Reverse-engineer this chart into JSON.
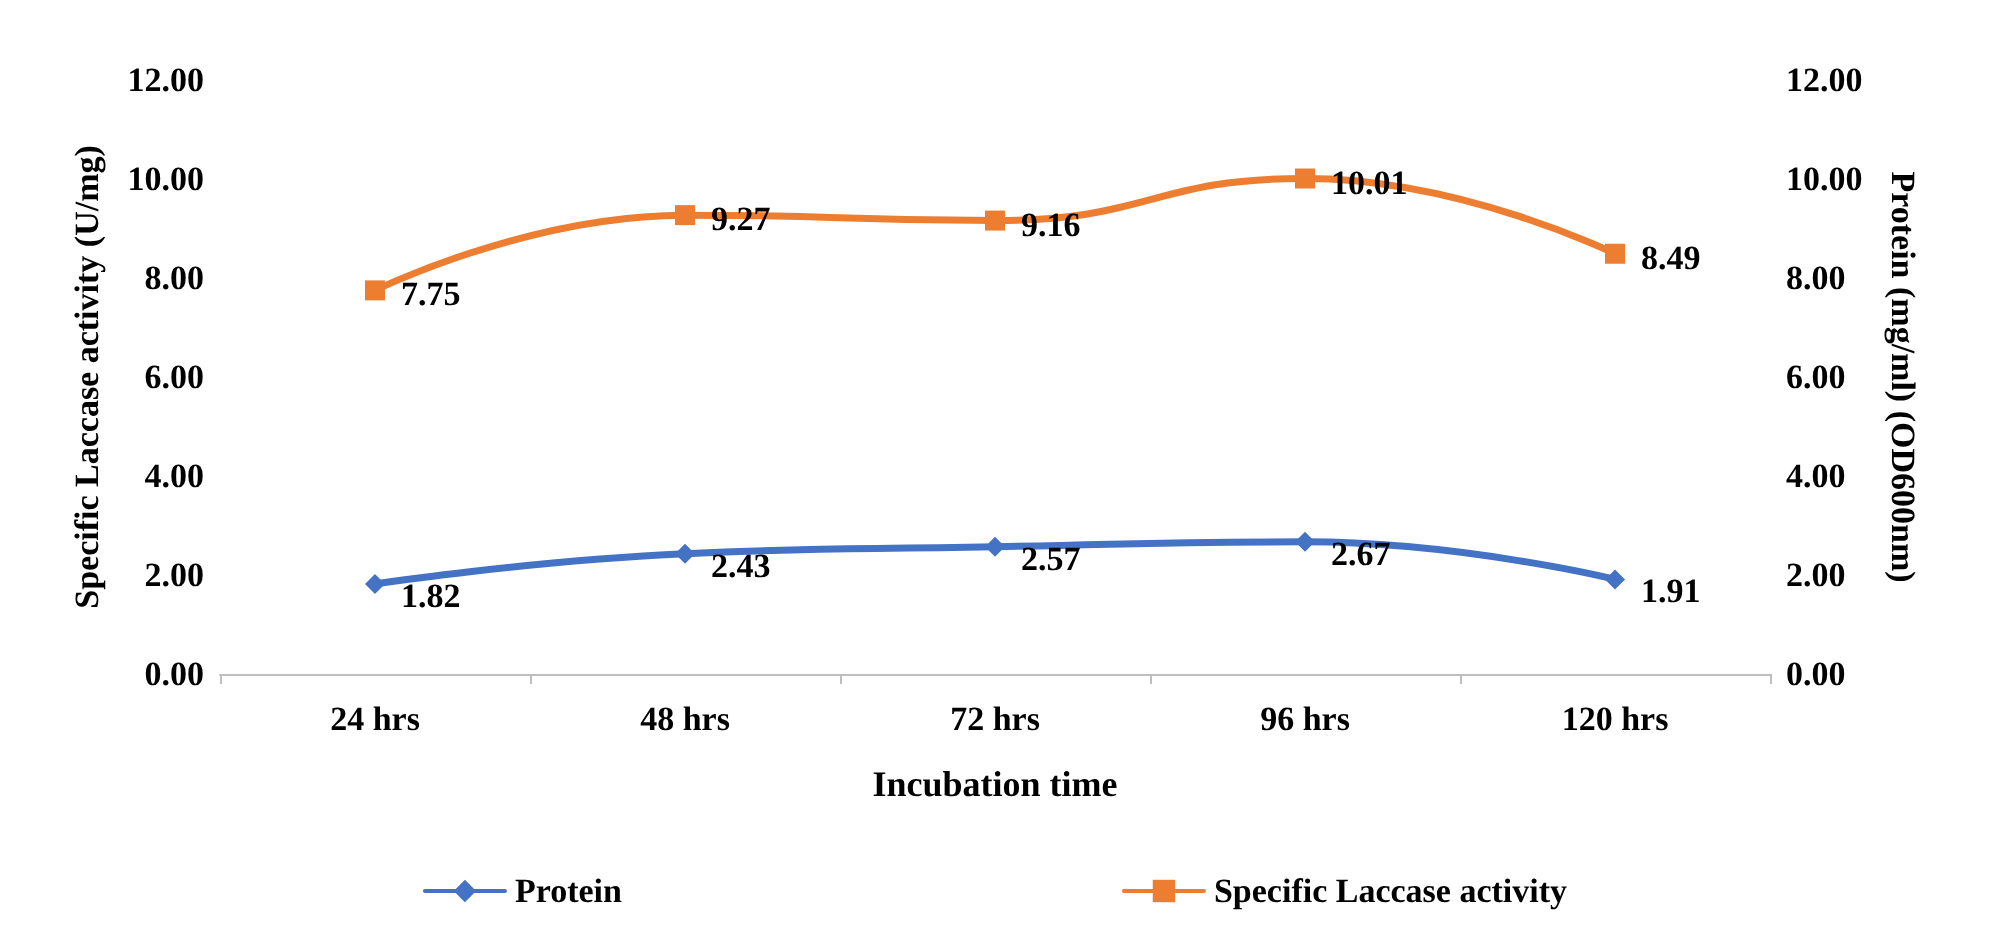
{
  "chart_data": {
    "type": "line",
    "xlabel": "Incubation time",
    "ylabel": "Specific Laccase activity (U/mg)",
    "y2label": "Protein (mg/ml) (OD600nm)",
    "categories": [
      "24 hrs",
      "48 hrs",
      "72 hrs",
      "96 hrs",
      "120 hrs"
    ],
    "series": [
      {
        "name": "Protein",
        "color": "#4472c4",
        "values": [
          1.82,
          2.43,
          2.57,
          2.67,
          1.91
        ],
        "axis": "y2",
        "marker": "diamond"
      },
      {
        "name": "Specific Laccase activity",
        "color": "#ed7d31",
        "values": [
          7.75,
          9.27,
          9.16,
          10.01,
          8.49
        ],
        "marker": "square"
      }
    ],
    "ylim": [
      0,
      12
    ],
    "yticks": [
      {
        "value": 0,
        "label": "0.00"
      },
      {
        "value": 2,
        "label": "2.00"
      },
      {
        "value": 4,
        "label": "4.00"
      },
      {
        "value": 6,
        "label": "6.00"
      },
      {
        "value": 8,
        "label": "8.00"
      },
      {
        "value": 10,
        "label": "10.00"
      },
      {
        "value": 12,
        "label": "12.00"
      }
    ],
    "y2lim": [
      0,
      12
    ],
    "y2ticks": [
      {
        "value": 0,
        "label": "0.00"
      },
      {
        "value": 2,
        "label": "2.00"
      },
      {
        "value": 4,
        "label": "4.00"
      },
      {
        "value": 6,
        "label": "6.00"
      },
      {
        "value": 8,
        "label": "8.00"
      },
      {
        "value": 10,
        "label": "10.00"
      },
      {
        "value": 12,
        "label": "12.00"
      }
    ],
    "data_labels": true,
    "legend": "bottom",
    "grid": false
  }
}
